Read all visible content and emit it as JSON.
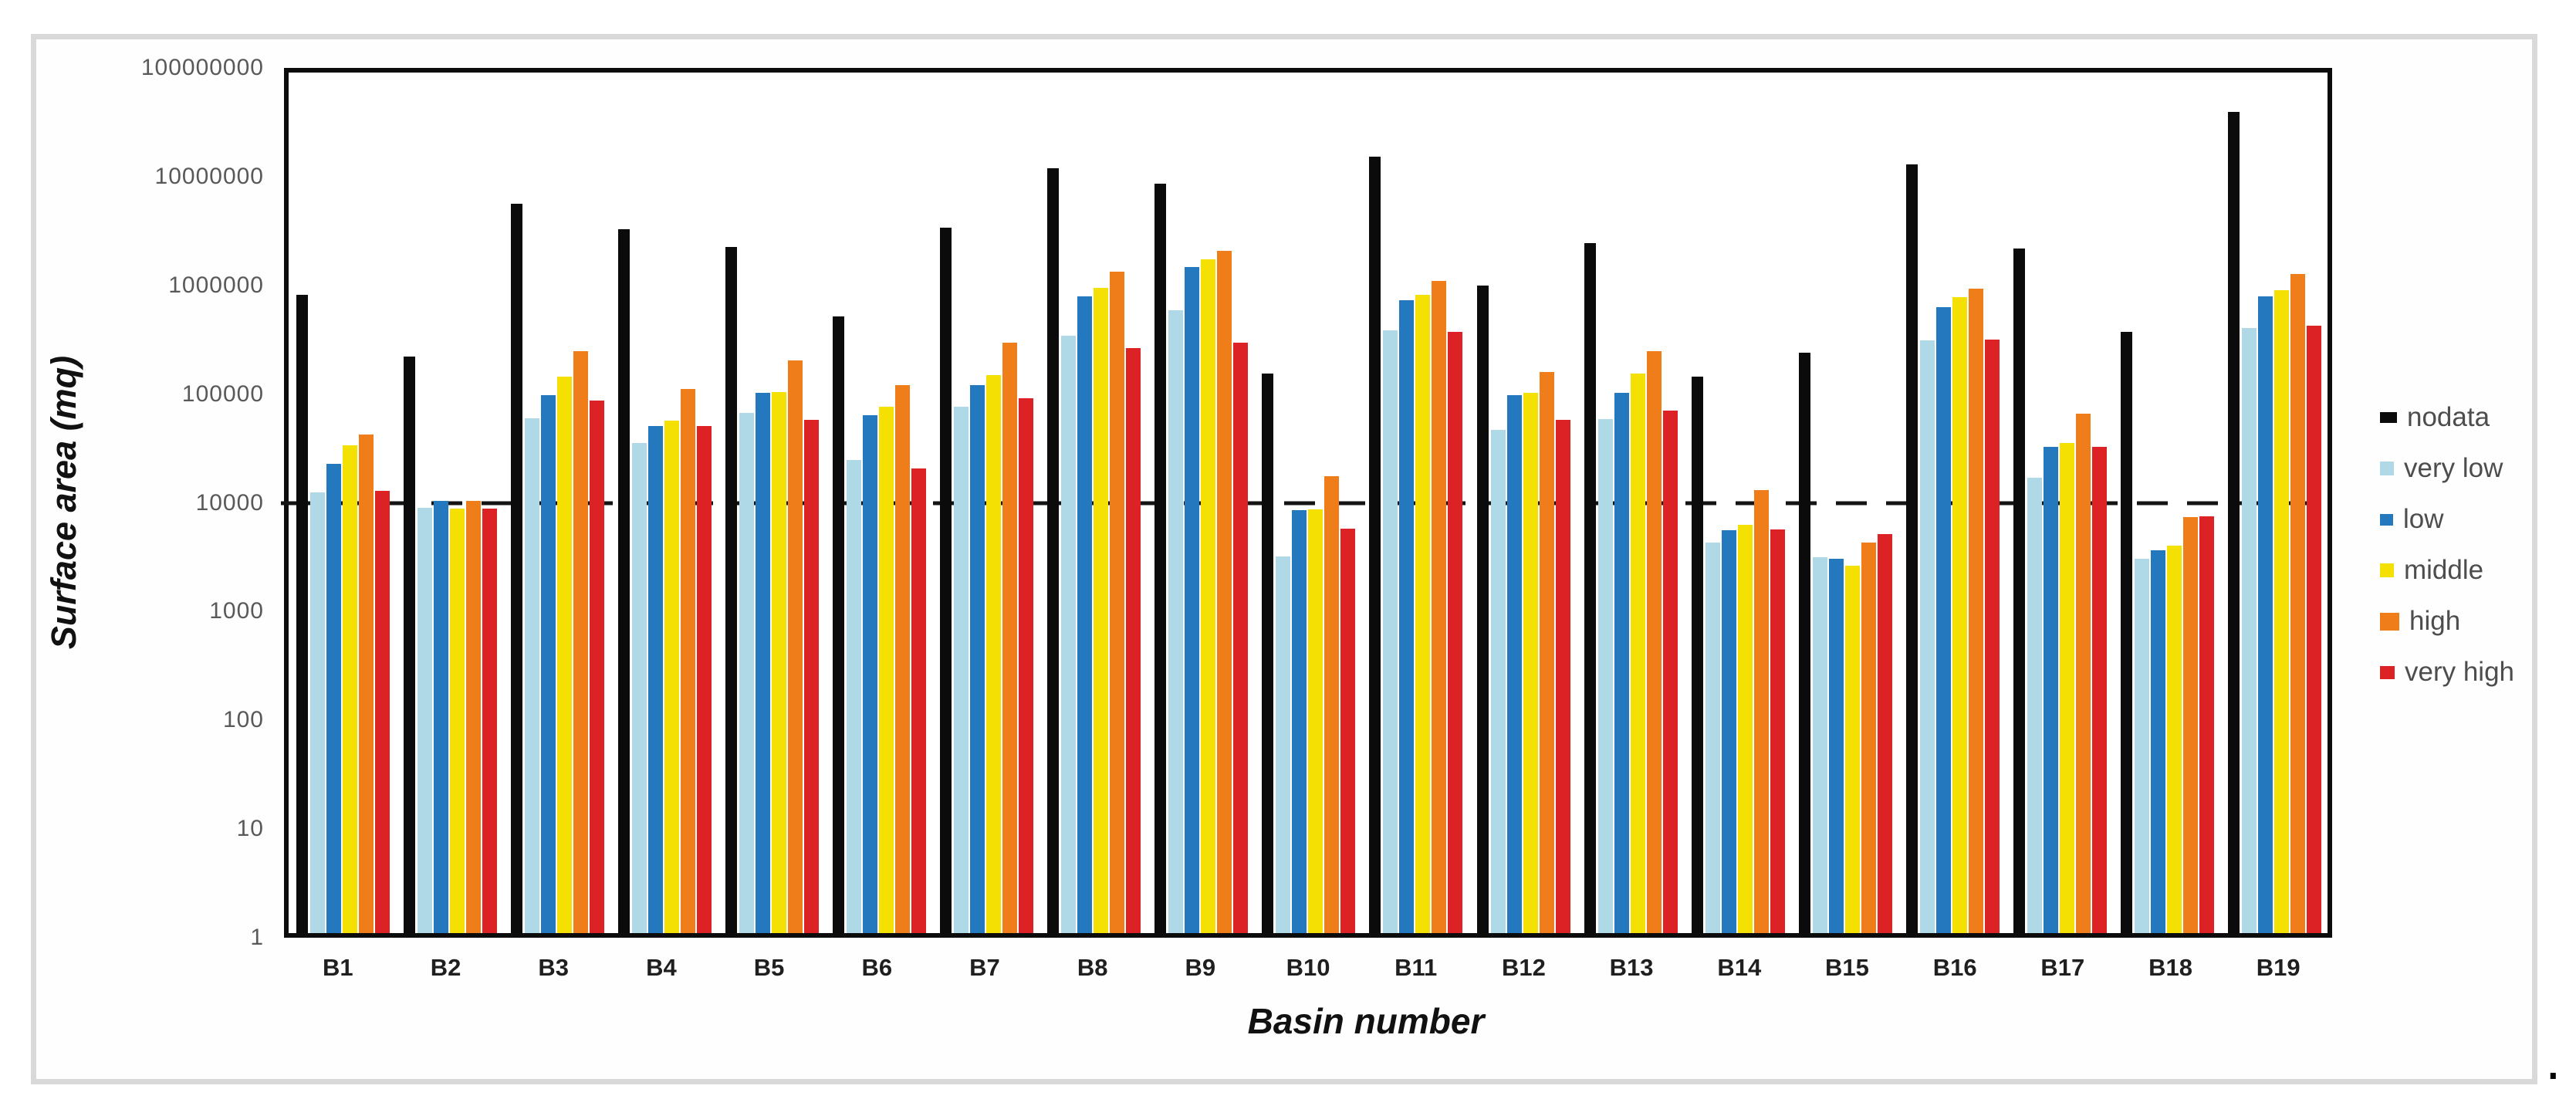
{
  "figure": {
    "y_axis_title": "Surface area (mq)",
    "x_axis_title": "Basin number",
    "caption_period": "."
  },
  "colors": {
    "nodata": "#0b0b0b",
    "very_low": "#afd9e6",
    "low": "#2478bd",
    "middle": "#f5e003",
    "high": "#ef7e1a",
    "very_high": "#dd2226",
    "frame": "#d9d9d9",
    "tick_label": "#595959",
    "legend_text": "#4d4d4d"
  },
  "chart_data": {
    "type": "bar",
    "y_scale": "log",
    "ylim": [
      1,
      100000000
    ],
    "y_ticks": [
      100000000,
      10000000,
      1000000,
      100000,
      10000,
      1000,
      100,
      10,
      1
    ],
    "grid": "off",
    "reference_line": {
      "y": 10000,
      "style": "dashed",
      "color": "#141414"
    },
    "title": "",
    "xlabel": "Basin number",
    "ylabel": "Surface area (mq)",
    "legend_position": "right",
    "categories": [
      "B1",
      "B2",
      "B3",
      "B4",
      "B5",
      "B6",
      "B7",
      "B8",
      "B9",
      "B10",
      "B11",
      "B12",
      "B13",
      "B14",
      "B15",
      "B16",
      "B17",
      "B18",
      "B19"
    ],
    "series": [
      {
        "name": "nodata",
        "color_key": "nodata",
        "values": [
          860000,
          230000,
          6000000,
          3500000,
          2400000,
          540000,
          3600000,
          13000000,
          9300000,
          160000,
          16500000,
          1050000,
          2600000,
          150000,
          250000,
          14000000,
          2300000,
          390000,
          43000000
        ]
      },
      {
        "name": "very low",
        "color_key": "very_low",
        "values": [
          12500,
          9000,
          61000,
          36000,
          69000,
          25000,
          78000,
          360000,
          620000,
          3200,
          400000,
          48000,
          60000,
          4300,
          3100,
          325000,
          17000,
          3000,
          420000
        ]
      },
      {
        "name": "low",
        "color_key": "low",
        "values": [
          23000,
          10500,
          100000,
          52000,
          105000,
          65000,
          125000,
          830000,
          1550000,
          8600,
          760000,
          100000,
          105000,
          5600,
          3000,
          660000,
          33000,
          3600,
          830000
        ]
      },
      {
        "name": "middle",
        "color_key": "middle",
        "values": [
          34000,
          8800,
          150000,
          58000,
          107000,
          78000,
          155000,
          1000000,
          1850000,
          8700,
          860000,
          105000,
          160000,
          6300,
          2600,
          815000,
          36000,
          4000,
          950000
        ]
      },
      {
        "name": "high",
        "color_key": "high",
        "values": [
          43000,
          10500,
          255000,
          115000,
          210000,
          125000,
          310000,
          1400000,
          2200000,
          17800,
          1150000,
          165000,
          255000,
          13200,
          4300,
          980000,
          67000,
          7400,
          1350000
        ]
      },
      {
        "name": "very high",
        "color_key": "very_high",
        "values": [
          13000,
          8800,
          89000,
          52000,
          59000,
          21000,
          93000,
          275000,
          310000,
          5800,
          390000,
          59000,
          72000,
          5700,
          5100,
          330000,
          33000,
          7500,
          440000
        ]
      }
    ]
  }
}
